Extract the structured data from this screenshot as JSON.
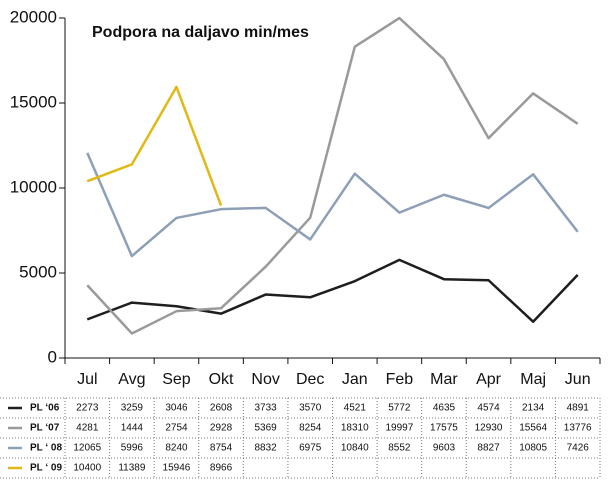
{
  "chart_data": {
    "type": "line",
    "title": "Podpora na daljavo min/mes",
    "categories": [
      "Jul",
      "Avg",
      "Sep",
      "Okt",
      "Nov",
      "Dec",
      "Jan",
      "Feb",
      "Mar",
      "Apr",
      "Maj",
      "Jun"
    ],
    "series": [
      {
        "name": "PL ‘06",
        "color": "#1e1e1e",
        "values": [
          2273,
          3259,
          3046,
          2608,
          3733,
          3570,
          4521,
          5772,
          4635,
          4574,
          2134,
          4891
        ]
      },
      {
        "name": "PL ‘07",
        "color": "#9a9a9a",
        "values": [
          4281,
          1444,
          2754,
          2928,
          5369,
          8254,
          18310,
          19997,
          17575,
          12930,
          15564,
          13776
        ]
      },
      {
        "name": "PL ‘ 08",
        "color": "#8e9fb8",
        "values": [
          12065,
          5996,
          8240,
          8754,
          8832,
          6975,
          10840,
          8552,
          9603,
          8827,
          10805,
          7426
        ]
      },
      {
        "name": "PL ‘ 09",
        "color": "#e2b814",
        "values": [
          10400,
          11389,
          15946,
          8966,
          null,
          null,
          null,
          null,
          null,
          null,
          null,
          null
        ]
      }
    ],
    "ylim": [
      0,
      20000
    ],
    "yticks": [
      0,
      5000,
      10000,
      15000,
      20000
    ],
    "grid": false
  }
}
